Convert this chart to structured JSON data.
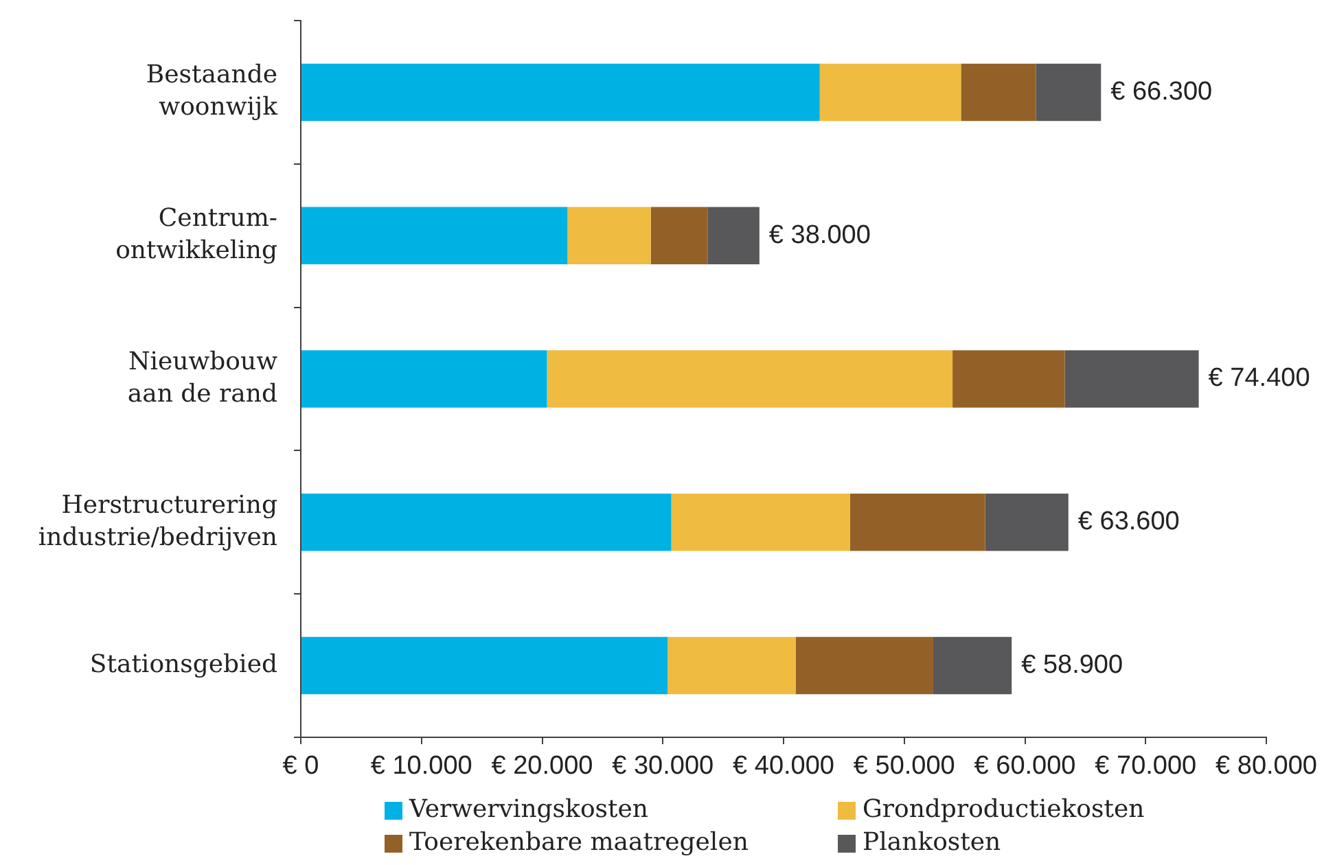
{
  "chart_data": {
    "type": "bar",
    "orientation": "horizontal",
    "stacked": true,
    "categories": [
      "Bestaande woonwijk",
      "Centrum-ontwikkeling",
      "Nieuwbouw aan de rand",
      "Herstructurering industrie/bedrijven",
      "Stationsgebied"
    ],
    "series": [
      {
        "name": "Verwervingskosten",
        "color": "#00b2e3",
        "values": [
          43000,
          22100,
          20400,
          30700,
          30400
        ]
      },
      {
        "name": "Grondproductiekosten",
        "color": "#efbb41",
        "values": [
          11700,
          6900,
          33600,
          14800,
          10600
        ]
      },
      {
        "name": "Toerekenbare maatregelen",
        "color": "#936128",
        "values": [
          6200,
          4700,
          9300,
          11200,
          11400
        ]
      },
      {
        "name": "Plankosten",
        "color": "#58585a",
        "values": [
          5400,
          4300,
          11100,
          6900,
          6500
        ]
      }
    ],
    "totals": [
      "€ 66.300",
      "€ 38.000",
      "€ 74.400",
      "€ 63.600",
      "€ 58.900"
    ],
    "xlim": [
      0,
      80000
    ],
    "xticks": [
      {
        "value": 0,
        "label": "€ 0"
      },
      {
        "value": 10000,
        "label": "€ 10.000"
      },
      {
        "value": 20000,
        "label": "€ 20.000"
      },
      {
        "value": 30000,
        "label": "€ 30.000"
      },
      {
        "value": 40000,
        "label": "€ 40.000"
      },
      {
        "value": 50000,
        "label": "€ 50.000"
      },
      {
        "value": 60000,
        "label": "€ 60.000"
      },
      {
        "value": 70000,
        "label": "€ 70.000"
      },
      {
        "value": 80000,
        "label": "€ 80.000"
      }
    ],
    "legend": "bottom"
  }
}
